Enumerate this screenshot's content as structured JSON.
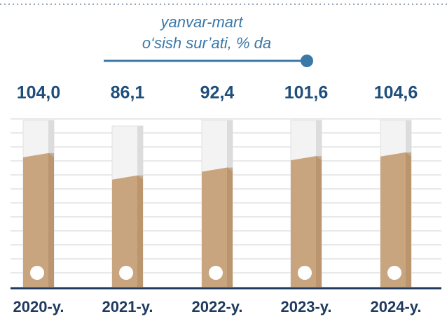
{
  "chart_data": {
    "type": "bar",
    "title": "yanvar-mart",
    "subtitle": "o‘sish sur’ati, % da",
    "categories": [
      "2020-y.",
      "2021-y.",
      "2022-y.",
      "2023-y.",
      "2024-y."
    ],
    "values": [
      104.0,
      86.1,
      92.4,
      101.6,
      104.6
    ],
    "value_labels": [
      "104,0",
      "86,1",
      "92,4",
      "101,6",
      "104,6"
    ],
    "color": "#c9a57f"
  }
}
